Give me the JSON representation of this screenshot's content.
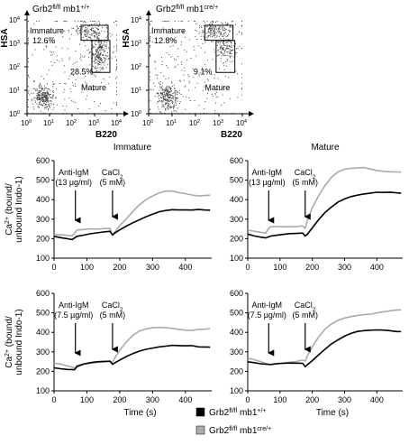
{
  "flow": [
    {
      "title": "Grb2",
      "title_sup1": "fl/fl",
      "title_mid": " mb1",
      "title_sup2": "+/+",
      "ylabel": "HSA",
      "xlabel": "B220",
      "ticks": [
        "10",
        "10",
        "10",
        "10",
        "10"
      ],
      "tick_exp": [
        "0",
        "1",
        "2",
        "3",
        "4"
      ],
      "gates": [
        {
          "name": "Immature",
          "percent": "12.6%"
        },
        {
          "name": "Mature",
          "percent": "28.5%"
        }
      ]
    },
    {
      "title": "Grb2",
      "title_sup1": "fl/fl",
      "title_mid": " mb1",
      "title_sup2": "cre/+",
      "ylabel": "HSA",
      "xlabel": "B220",
      "ticks": [
        "10",
        "10",
        "10",
        "10",
        "10"
      ],
      "tick_exp": [
        "0",
        "1",
        "2",
        "3",
        "4"
      ],
      "gates": [
        {
          "name": "Immature",
          "percent": "12.8%"
        },
        {
          "name": "Mature",
          "percent": "9.1%"
        }
      ]
    }
  ],
  "column_titles": [
    "Immature",
    "Mature"
  ],
  "ylabel_lines": [
    "Ca",
    "2+",
    " (bound/",
    "unbound Indo-1)"
  ],
  "xlabel": "Time (s)",
  "legend": [
    {
      "name": "Grb2",
      "sup1": "fl/fl",
      "mid": " mb1",
      "sup2": "+/+",
      "color": "#000000"
    },
    {
      "name": "Grb2",
      "sup1": "fl/fl",
      "mid": " mb1",
      "sup2": "cre/+",
      "color": "#aaaaaa"
    }
  ],
  "chart_data": [
    {
      "type": "line",
      "panel": "Immature, 13 µg/ml",
      "x": [
        0,
        20,
        40,
        55,
        62,
        70,
        90,
        110,
        130,
        150,
        170,
        178,
        185,
        200,
        220,
        240,
        260,
        280,
        300,
        320,
        340,
        360,
        380,
        400,
        420,
        440,
        460,
        475
      ],
      "series": [
        {
          "color": "#000000",
          "values": [
            212,
            208,
            205,
            202,
            210,
            218,
            222,
            226,
            228,
            230,
            232,
            212,
            222,
            240,
            262,
            282,
            300,
            318,
            332,
            345,
            350,
            352,
            348,
            345,
            342,
            343,
            340,
            340
          ]
        },
        {
          "color": "#aaaaaa",
          "values": [
            222,
            218,
            212,
            208,
            220,
            238,
            242,
            248,
            250,
            255,
            258,
            225,
            240,
            272,
            305,
            340,
            372,
            395,
            412,
            428,
            438,
            440,
            435,
            432,
            428,
            425,
            428,
            430
          ]
        }
      ],
      "annotations": [
        {
          "text": "Anti-IgM",
          "sub": "(13 µg/ml)",
          "x": 65
        },
        {
          "text": "CaCl",
          "text_sub": "2",
          "sub": "(5 mM)",
          "x": 178
        }
      ],
      "xlim": [
        0,
        480
      ],
      "ylim": [
        100,
        600
      ],
      "xticks": [
        0,
        100,
        200,
        300,
        400
      ],
      "yticks": [
        100,
        200,
        300,
        400,
        500,
        600
      ]
    },
    {
      "type": "line",
      "panel": "Mature, 13 µg/ml",
      "x": [
        0,
        20,
        40,
        55,
        62,
        70,
        90,
        110,
        130,
        150,
        170,
        178,
        185,
        200,
        220,
        240,
        260,
        280,
        300,
        320,
        340,
        360,
        380,
        400,
        420,
        440,
        460,
        475
      ],
      "series": [
        {
          "color": "#000000",
          "values": [
            228,
            220,
            215,
            210,
            212,
            215,
            217,
            218,
            220,
            220,
            222,
            208,
            220,
            255,
            300,
            340,
            370,
            395,
            410,
            420,
            425,
            428,
            430,
            432,
            430,
            432,
            430,
            430
          ]
        },
        {
          "color": "#aaaaaa",
          "values": [
            240,
            232,
            226,
            222,
            240,
            258,
            262,
            264,
            266,
            268,
            272,
            260,
            300,
            360,
            420,
            470,
            510,
            535,
            550,
            555,
            560,
            565,
            560,
            555,
            552,
            550,
            548,
            545
          ]
        }
      ],
      "annotations": [
        {
          "text": "Anti-IgM",
          "sub": "(13 µg/ml)",
          "x": 65
        },
        {
          "text": "CaCl",
          "text_sub": "2",
          "sub": "(5 mM)",
          "x": 178
        }
      ],
      "xlim": [
        0,
        480
      ],
      "ylim": [
        100,
        600
      ],
      "xticks": [
        0,
        100,
        200,
        300,
        400
      ],
      "yticks": [
        100,
        200,
        300,
        400,
        500,
        600
      ]
    },
    {
      "type": "line",
      "panel": "Immature, 7.5 µg/ml",
      "x": [
        0,
        20,
        40,
        55,
        62,
        70,
        90,
        110,
        130,
        150,
        170,
        178,
        185,
        200,
        220,
        240,
        260,
        280,
        300,
        320,
        340,
        360,
        380,
        400,
        420,
        440,
        460,
        475
      ],
      "series": [
        {
          "color": "#000000",
          "values": [
            225,
            220,
            215,
            212,
            208,
            222,
            232,
            238,
            242,
            245,
            248,
            235,
            245,
            262,
            282,
            298,
            310,
            318,
            322,
            325,
            326,
            328,
            325,
            324,
            326,
            322,
            324,
            326
          ]
        },
        {
          "color": "#aaaaaa",
          "values": [
            235,
            230,
            222,
            218,
            215,
            232,
            242,
            248,
            252,
            255,
            258,
            248,
            268,
            305,
            345,
            378,
            400,
            412,
            420,
            425,
            426,
            425,
            422,
            418,
            416,
            420,
            418,
            418
          ]
        }
      ],
      "annotations": [
        {
          "text": "Anti-IgM",
          "sub": "(7.5 µg/ml)",
          "x": 65
        },
        {
          "text": "CaCl",
          "text_sub": "2",
          "sub": "(5 mM)",
          "x": 178
        }
      ],
      "xlim": [
        0,
        480
      ],
      "ylim": [
        100,
        600
      ],
      "xticks": [
        0,
        100,
        200,
        300,
        400
      ],
      "yticks": [
        100,
        200,
        300,
        400,
        500,
        600
      ]
    },
    {
      "type": "line",
      "panel": "Mature, 7.5 µg/ml",
      "x": [
        0,
        20,
        40,
        55,
        62,
        70,
        90,
        110,
        130,
        150,
        170,
        178,
        185,
        200,
        220,
        240,
        260,
        280,
        300,
        320,
        340,
        360,
        380,
        400,
        420,
        440,
        460,
        475
      ],
      "series": [
        {
          "color": "#000000",
          "values": [
            255,
            248,
            240,
            235,
            232,
            228,
            232,
            235,
            238,
            240,
            242,
            228,
            240,
            262,
            292,
            320,
            345,
            362,
            378,
            390,
            398,
            402,
            405,
            408,
            410,
            410,
            408,
            410
          ]
        },
        {
          "color": "#aaaaaa",
          "values": [
            262,
            255,
            248,
            242,
            240,
            242,
            248,
            250,
            252,
            254,
            258,
            250,
            275,
            320,
            370,
            412,
            440,
            460,
            475,
            485,
            492,
            498,
            500,
            505,
            508,
            510,
            512,
            510
          ]
        }
      ],
      "annotations": [
        {
          "text": "Anti-IgM",
          "sub": "(7.5 µg/ml)",
          "x": 65
        },
        {
          "text": "CaCl",
          "text_sub": "2",
          "sub": "(5 mM)",
          "x": 178
        }
      ],
      "xlim": [
        0,
        480
      ],
      "ylim": [
        100,
        600
      ],
      "xticks": [
        0,
        100,
        200,
        300,
        400
      ],
      "yticks": [
        100,
        200,
        300,
        400,
        500,
        600
      ]
    }
  ]
}
